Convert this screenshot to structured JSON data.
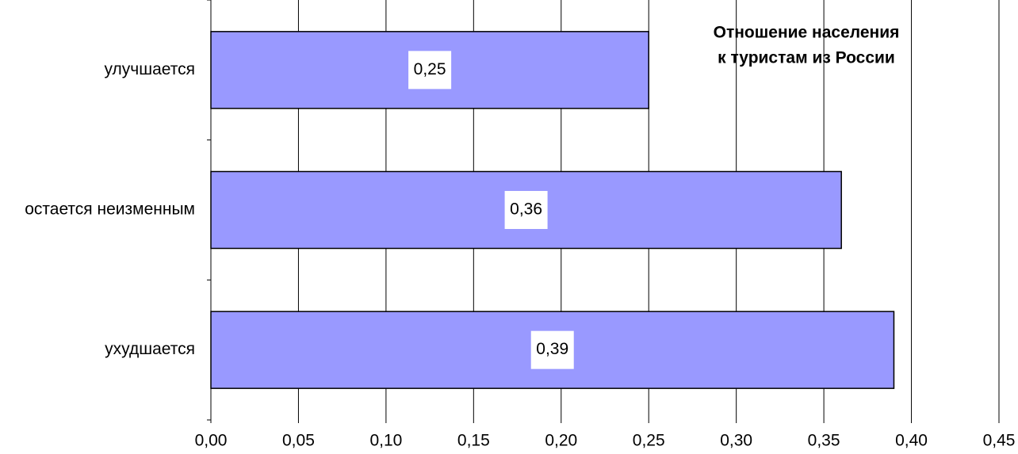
{
  "chart_data": {
    "type": "bar",
    "orientation": "horizontal",
    "title": [
      "Отношение населения",
      "к туристам из России"
    ],
    "categories": [
      "улучшается",
      "остается неизменным",
      "ухудшается"
    ],
    "values": [
      0.25,
      0.36,
      0.39
    ],
    "value_labels": [
      "0,25",
      "0,36",
      "0,39"
    ],
    "color": "#9999ff",
    "xlim": [
      0,
      0.45
    ],
    "xticks": [
      {
        "value": 0,
        "label": "0,00"
      },
      {
        "value": 0.05,
        "label": "0,05"
      },
      {
        "value": 0.1,
        "label": "0,10"
      },
      {
        "value": 0.15,
        "label": "0,15"
      },
      {
        "value": 0.2,
        "label": "0,20"
      },
      {
        "value": 0.25,
        "label": "0,25"
      },
      {
        "value": 0.3,
        "label": "0,30"
      },
      {
        "value": 0.35,
        "label": "0,35"
      },
      {
        "value": 0.4,
        "label": "0,40"
      },
      {
        "value": 0.45,
        "label": "0,45"
      }
    ],
    "grid": true
  }
}
